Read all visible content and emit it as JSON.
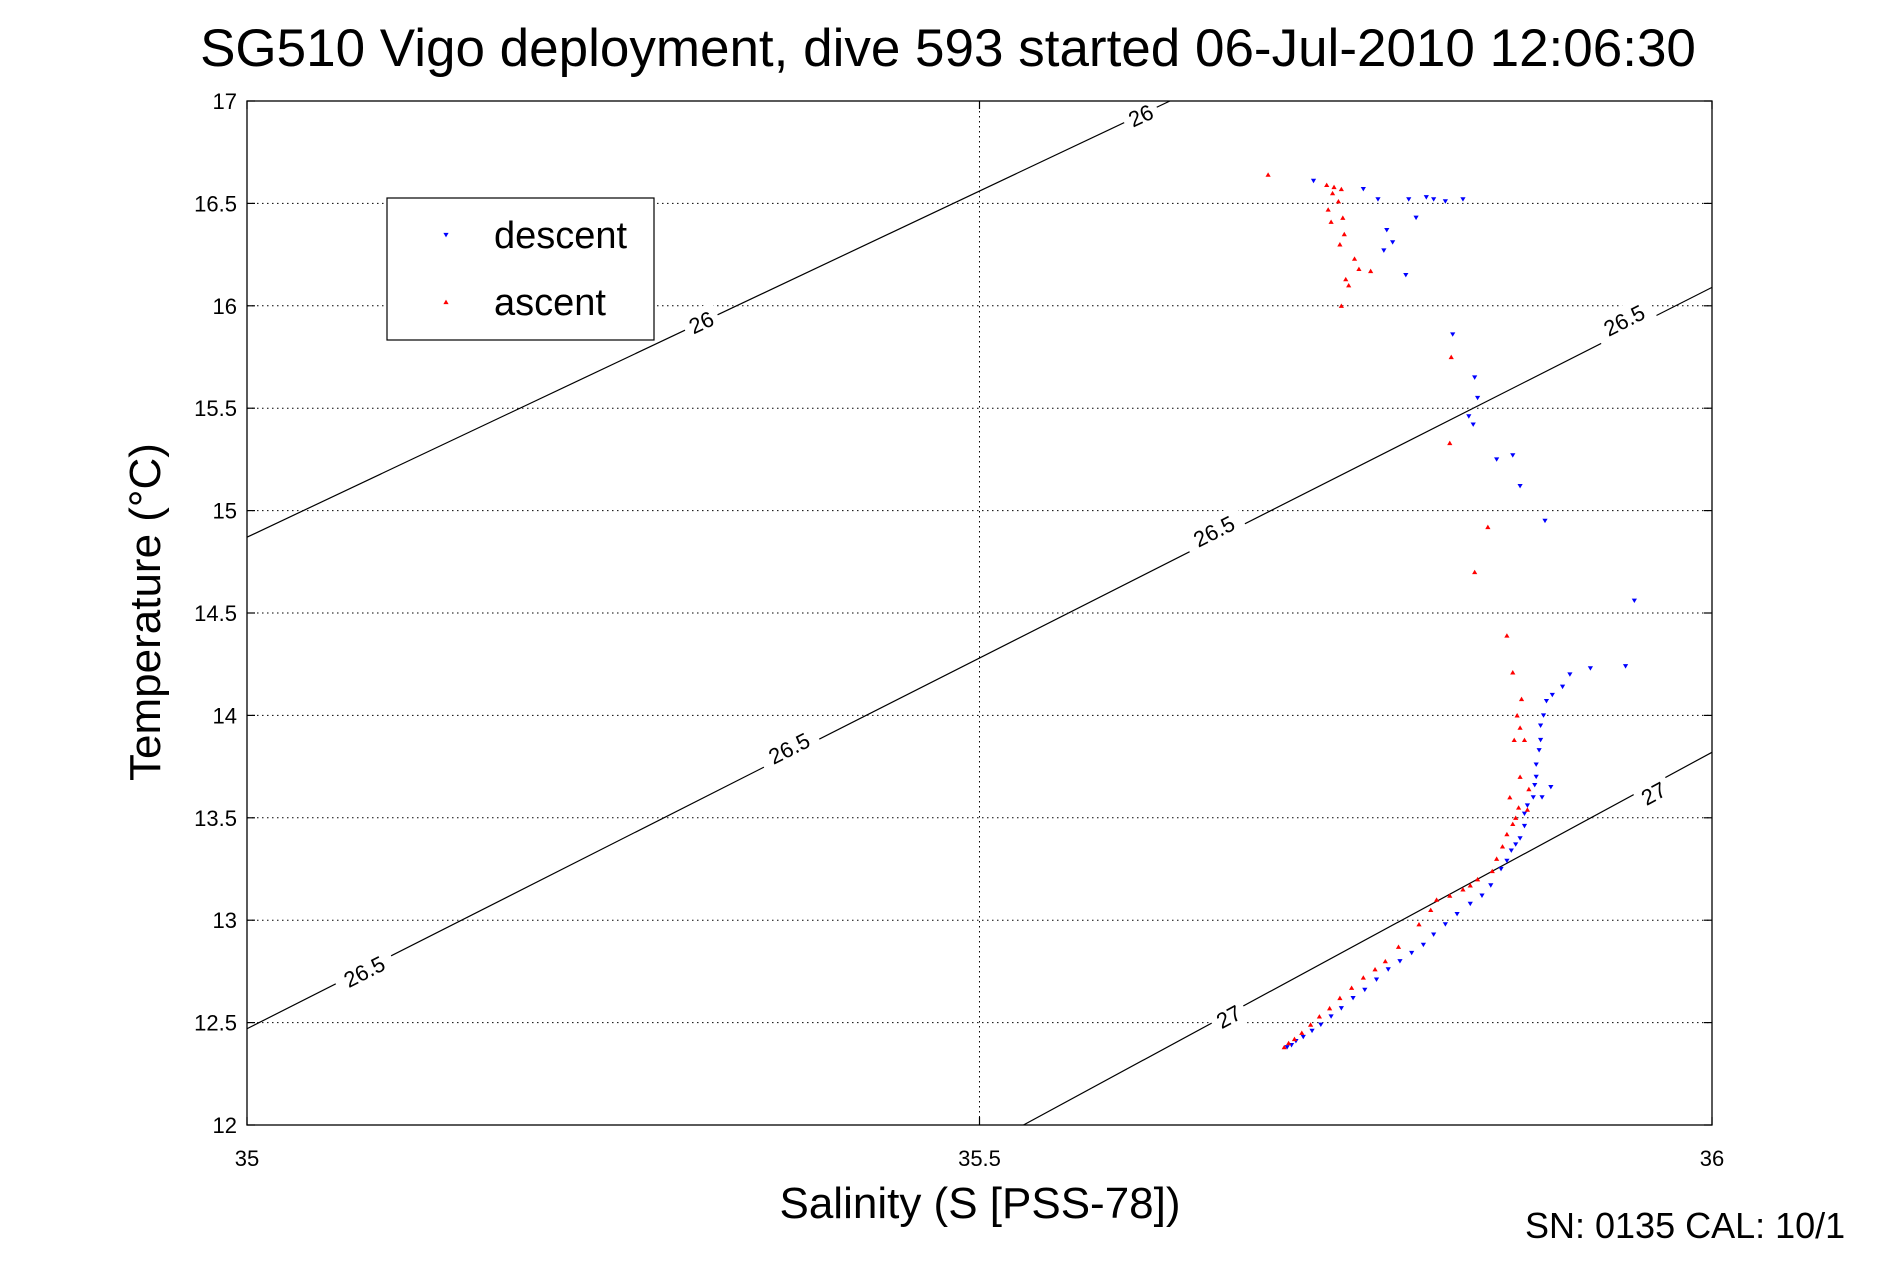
{
  "footer": "SN: 0135  CAL: 10/1",
  "chart_data": {
    "type": "scatter",
    "title": "SG510 Vigo deployment, dive 593 started 06-Jul-2010 12:06:30",
    "xlabel": "Salinity (S [PSS-78])",
    "ylabel": "Temperature (°C)",
    "xlim": [
      35,
      36
    ],
    "ylim": [
      12,
      17
    ],
    "xticks": [
      "35",
      "35.5",
      "36"
    ],
    "yticks": [
      "12",
      "12.5",
      "13",
      "13.5",
      "14",
      "14.5",
      "15",
      "15.5",
      "16",
      "16.5",
      "17"
    ],
    "grid": true,
    "legend_position": "top-left",
    "contours": [
      {
        "level": "26",
        "points": [
          [
            35.0,
            14.87
          ],
          [
            35.63,
            17.0
          ]
        ],
        "labels": [
          [
            35.31,
            15.92
          ],
          [
            35.61,
            16.93
          ]
        ]
      },
      {
        "level": "26.5",
        "points": [
          [
            35.0,
            12.47
          ],
          [
            36.0,
            16.09
          ]
        ],
        "labels": [
          [
            35.08,
            12.75
          ],
          [
            35.37,
            13.84
          ],
          [
            35.66,
            14.9
          ],
          [
            35.94,
            15.93
          ]
        ]
      },
      {
        "level": "27",
        "points": [
          [
            35.53,
            12.0
          ],
          [
            36.0,
            13.82
          ]
        ],
        "labels": [
          [
            35.67,
            12.53
          ],
          [
            35.96,
            13.62
          ]
        ]
      }
    ],
    "series": [
      {
        "name": "descent",
        "color": "#0000ff",
        "marker": "triangle-down",
        "points": [
          [
            35.728,
            16.61
          ],
          [
            35.762,
            16.57
          ],
          [
            35.772,
            16.52
          ],
          [
            35.793,
            16.52
          ],
          [
            35.798,
            16.43
          ],
          [
            35.778,
            16.37
          ],
          [
            35.782,
            16.31
          ],
          [
            35.776,
            16.27
          ],
          [
            35.791,
            16.15
          ],
          [
            35.805,
            16.53
          ],
          [
            35.81,
            16.52
          ],
          [
            35.83,
            16.52
          ],
          [
            35.818,
            16.51
          ],
          [
            35.823,
            15.86
          ],
          [
            35.838,
            15.65
          ],
          [
            35.84,
            15.55
          ],
          [
            35.834,
            15.46
          ],
          [
            35.837,
            15.42
          ],
          [
            35.853,
            15.25
          ],
          [
            35.864,
            15.27
          ],
          [
            35.869,
            15.12
          ],
          [
            35.886,
            14.95
          ],
          [
            35.947,
            14.56
          ],
          [
            35.941,
            14.24
          ],
          [
            35.917,
            14.23
          ],
          [
            35.903,
            14.2
          ],
          [
            35.898,
            14.14
          ],
          [
            35.891,
            14.1
          ],
          [
            35.887,
            14.07
          ],
          [
            35.885,
            14.0
          ],
          [
            35.883,
            13.95
          ],
          [
            35.883,
            13.88
          ],
          [
            35.882,
            13.83
          ],
          [
            35.88,
            13.76
          ],
          [
            35.88,
            13.7
          ],
          [
            35.879,
            13.66
          ],
          [
            35.89,
            13.65
          ],
          [
            35.884,
            13.6
          ],
          [
            35.878,
            13.6
          ],
          [
            35.874,
            13.56
          ],
          [
            35.872,
            13.52
          ],
          [
            35.872,
            13.46
          ],
          [
            35.869,
            13.4
          ],
          [
            35.866,
            13.37
          ],
          [
            35.863,
            13.34
          ],
          [
            35.86,
            13.29
          ],
          [
            35.856,
            13.25
          ],
          [
            35.849,
            13.17
          ],
          [
            35.843,
            13.12
          ],
          [
            35.835,
            13.08
          ],
          [
            35.826,
            13.03
          ],
          [
            35.818,
            12.98
          ],
          [
            35.81,
            12.93
          ],
          [
            35.803,
            12.88
          ],
          [
            35.795,
            12.84
          ],
          [
            35.787,
            12.8
          ],
          [
            35.779,
            12.76
          ],
          [
            35.771,
            12.71
          ],
          [
            35.763,
            12.66
          ],
          [
            35.755,
            12.62
          ],
          [
            35.747,
            12.57
          ],
          [
            35.74,
            12.53
          ],
          [
            35.733,
            12.49
          ],
          [
            35.727,
            12.46
          ],
          [
            35.721,
            12.43
          ],
          [
            35.716,
            12.41
          ],
          [
            35.713,
            12.39
          ],
          [
            35.71,
            12.38
          ]
        ]
      },
      {
        "name": "ascent",
        "color": "#ff0000",
        "marker": "triangle-up",
        "points": [
          [
            35.697,
            16.64
          ],
          [
            35.737,
            16.59
          ],
          [
            35.742,
            16.58
          ],
          [
            35.747,
            16.57
          ],
          [
            35.741,
            16.55
          ],
          [
            35.745,
            16.51
          ],
          [
            35.738,
            16.47
          ],
          [
            35.748,
            16.43
          ],
          [
            35.74,
            16.41
          ],
          [
            35.749,
            16.35
          ],
          [
            35.746,
            16.3
          ],
          [
            35.756,
            16.23
          ],
          [
            35.759,
            16.18
          ],
          [
            35.767,
            16.17
          ],
          [
            35.75,
            16.13
          ],
          [
            35.752,
            16.1
          ],
          [
            35.747,
            16.0
          ],
          [
            35.822,
            15.75
          ],
          [
            35.821,
            15.33
          ],
          [
            35.847,
            14.92
          ],
          [
            35.838,
            14.7
          ],
          [
            35.86,
            14.39
          ],
          [
            35.864,
            14.21
          ],
          [
            35.87,
            14.08
          ],
          [
            35.867,
            14.0
          ],
          [
            35.869,
            13.94
          ],
          [
            35.865,
            13.88
          ],
          [
            35.872,
            13.88
          ],
          [
            35.869,
            13.7
          ],
          [
            35.875,
            13.64
          ],
          [
            35.862,
            13.6
          ],
          [
            35.868,
            13.55
          ],
          [
            35.874,
            13.54
          ],
          [
            35.866,
            13.5
          ],
          [
            35.864,
            13.47
          ],
          [
            35.86,
            13.42
          ],
          [
            35.857,
            13.36
          ],
          [
            35.853,
            13.3
          ],
          [
            35.85,
            13.24
          ],
          [
            35.84,
            13.2
          ],
          [
            35.835,
            13.17
          ],
          [
            35.83,
            13.15
          ],
          [
            35.821,
            13.12
          ],
          [
            35.812,
            13.1
          ],
          [
            35.808,
            13.05
          ],
          [
            35.8,
            12.98
          ],
          [
            35.786,
            12.87
          ],
          [
            35.777,
            12.8
          ],
          [
            35.77,
            12.76
          ],
          [
            35.762,
            12.72
          ],
          [
            35.754,
            12.67
          ],
          [
            35.746,
            12.62
          ],
          [
            35.739,
            12.57
          ],
          [
            35.732,
            12.53
          ],
          [
            35.726,
            12.49
          ],
          [
            35.72,
            12.45
          ],
          [
            35.715,
            12.42
          ],
          [
            35.711,
            12.4
          ],
          [
            35.708,
            12.38
          ]
        ]
      }
    ]
  }
}
